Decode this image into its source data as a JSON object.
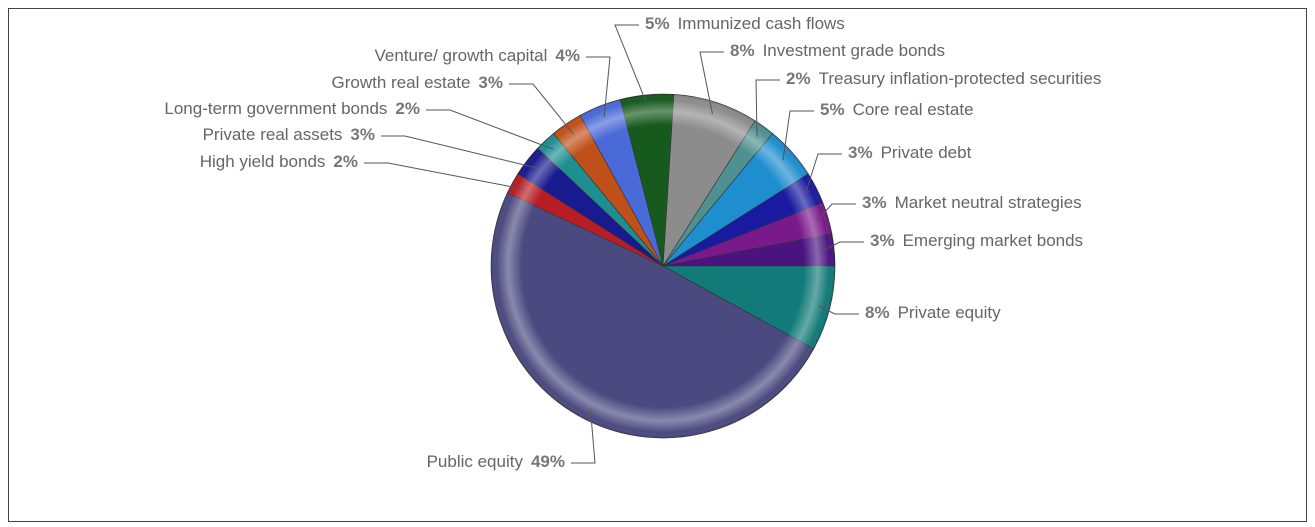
{
  "chart_data": {
    "type": "pie",
    "labels": [
      "Investment grade bonds",
      "Treasury inflation-protected securities",
      "Core real estate",
      "Private debt",
      "Market neutral strategies",
      "Emerging market bonds",
      "Private equity",
      "Public equity",
      "High yield bonds",
      "Private real assets",
      "Long-term government bonds",
      "Growth real estate",
      "Venture/ growth capital",
      "Immunized cash flows"
    ],
    "values": [
      8,
      2,
      5,
      3,
      3,
      3,
      8,
      49,
      2,
      3,
      2,
      3,
      4,
      5
    ],
    "value_labels": [
      "8%",
      "2%",
      "5%",
      "3%",
      "3%",
      "3%",
      "8%",
      "49%",
      "2%",
      "3%",
      "2%",
      "3%",
      "4%",
      "5%"
    ],
    "colors": [
      "#8c8c8c",
      "#4f9090",
      "#1e8ecf",
      "#1a1aa0",
      "#7a1a8a",
      "#4a1480",
      "#127a78",
      "#4b4a80",
      "#b81c24",
      "#1a1a90",
      "#1e8e90",
      "#c0501a",
      "#4a6ad8",
      "#165a1e"
    ]
  }
}
